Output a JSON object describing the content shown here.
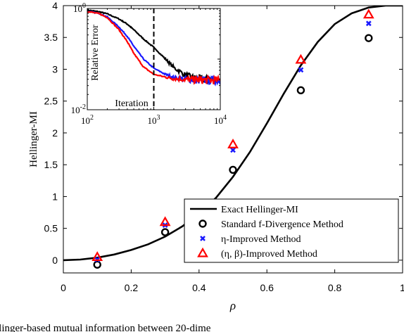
{
  "chart_data": {
    "type": "line",
    "xlabel": "ρ",
    "ylabel": "Hellinger-MI",
    "xlim": [
      0,
      1
    ],
    "ylim": [
      -0.2,
      4
    ],
    "xticks": [
      "0",
      "0.2",
      "0.4",
      "0.6",
      "0.8",
      "1"
    ],
    "yticks": [
      "0",
      "0.5",
      "1",
      "1.5",
      "2",
      "2.5",
      "3",
      "3.5",
      "4"
    ],
    "legend_position": "bottom-right",
    "series": [
      {
        "key": "exact",
        "name": "Exact Hellinger-MI",
        "kind": "line",
        "color": "#000000",
        "x": [
          0,
          0.05,
          0.1,
          0.15,
          0.2,
          0.25,
          0.3,
          0.35,
          0.4,
          0.45,
          0.5,
          0.55,
          0.6,
          0.65,
          0.7,
          0.75,
          0.8,
          0.85,
          0.9,
          0.95,
          1.0
        ],
        "y": [
          0,
          0.01,
          0.04,
          0.09,
          0.16,
          0.25,
          0.37,
          0.53,
          0.73,
          0.98,
          1.31,
          1.7,
          2.15,
          2.62,
          3.06,
          3.43,
          3.71,
          3.88,
          3.97,
          4.0,
          4.0
        ]
      },
      {
        "key": "standard",
        "name": "Standard f-Divergence Method",
        "kind": "circle",
        "color": "#000000",
        "x": [
          0.1,
          0.3,
          0.5,
          0.7,
          0.9
        ],
        "y": [
          -0.07,
          0.44,
          1.42,
          2.67,
          3.49
        ]
      },
      {
        "key": "eta",
        "name": "η-Improved Method",
        "kind": "cross",
        "color": "#1a1aff",
        "x": [
          0.1,
          0.3,
          0.5,
          0.7,
          0.9
        ],
        "y": [
          0.01,
          0.55,
          1.73,
          2.99,
          3.72
        ]
      },
      {
        "key": "etabeta",
        "name": "(η, β)-Improved Method",
        "kind": "triangle",
        "color": "#ff0000",
        "x": [
          0.1,
          0.3,
          0.5,
          0.7,
          0.9
        ],
        "y": [
          0.05,
          0.6,
          1.82,
          3.15,
          3.86
        ]
      }
    ],
    "inset": {
      "type": "line",
      "xscale": "log",
      "yscale": "log",
      "xlim": [
        100,
        10000
      ],
      "ylim": [
        0.01,
        1
      ],
      "xticks": [
        {
          "base": "10",
          "exp": "2"
        },
        {
          "base": "10",
          "exp": "3"
        },
        {
          "base": "10",
          "exp": "4"
        }
      ],
      "yticks": [
        {
          "base": "10",
          "exp": "0"
        },
        {
          "base": "10",
          "exp": "-2"
        }
      ],
      "xlabel": "Iteration",
      "ylabel": "Relative Error",
      "vline_x": 1000,
      "series": [
        {
          "key": "inset-black",
          "color": "#000000",
          "x": [
            100,
            150,
            200,
            300,
            400,
            500,
            700,
            1000,
            1500,
            2000,
            3000,
            4000,
            5000,
            7000,
            10000
          ],
          "y": [
            0.93,
            0.86,
            0.78,
            0.62,
            0.49,
            0.38,
            0.25,
            0.17,
            0.1,
            0.068,
            0.048,
            0.042,
            0.04,
            0.039,
            0.038
          ]
        },
        {
          "key": "inset-blue",
          "color": "#1a1aff",
          "x": [
            100,
            150,
            200,
            300,
            400,
            500,
            700,
            1000,
            1500,
            2000,
            3000,
            4000,
            5000,
            7000,
            10000
          ],
          "y": [
            0.87,
            0.8,
            0.68,
            0.43,
            0.28,
            0.18,
            0.1,
            0.066,
            0.05,
            0.043,
            0.04,
            0.039,
            0.038,
            0.038,
            0.038
          ]
        },
        {
          "key": "inset-red",
          "color": "#ff0000",
          "x": [
            100,
            150,
            200,
            300,
            400,
            500,
            700,
            1000,
            1500,
            2000,
            3000,
            4000,
            5000,
            7000,
            10000
          ],
          "y": [
            0.87,
            0.79,
            0.66,
            0.38,
            0.22,
            0.13,
            0.07,
            0.05,
            0.044,
            0.041,
            0.04,
            0.039,
            0.039,
            0.038,
            0.038
          ]
        }
      ]
    }
  },
  "caption_fragment": "llinger-based mutual information between 20-dime"
}
